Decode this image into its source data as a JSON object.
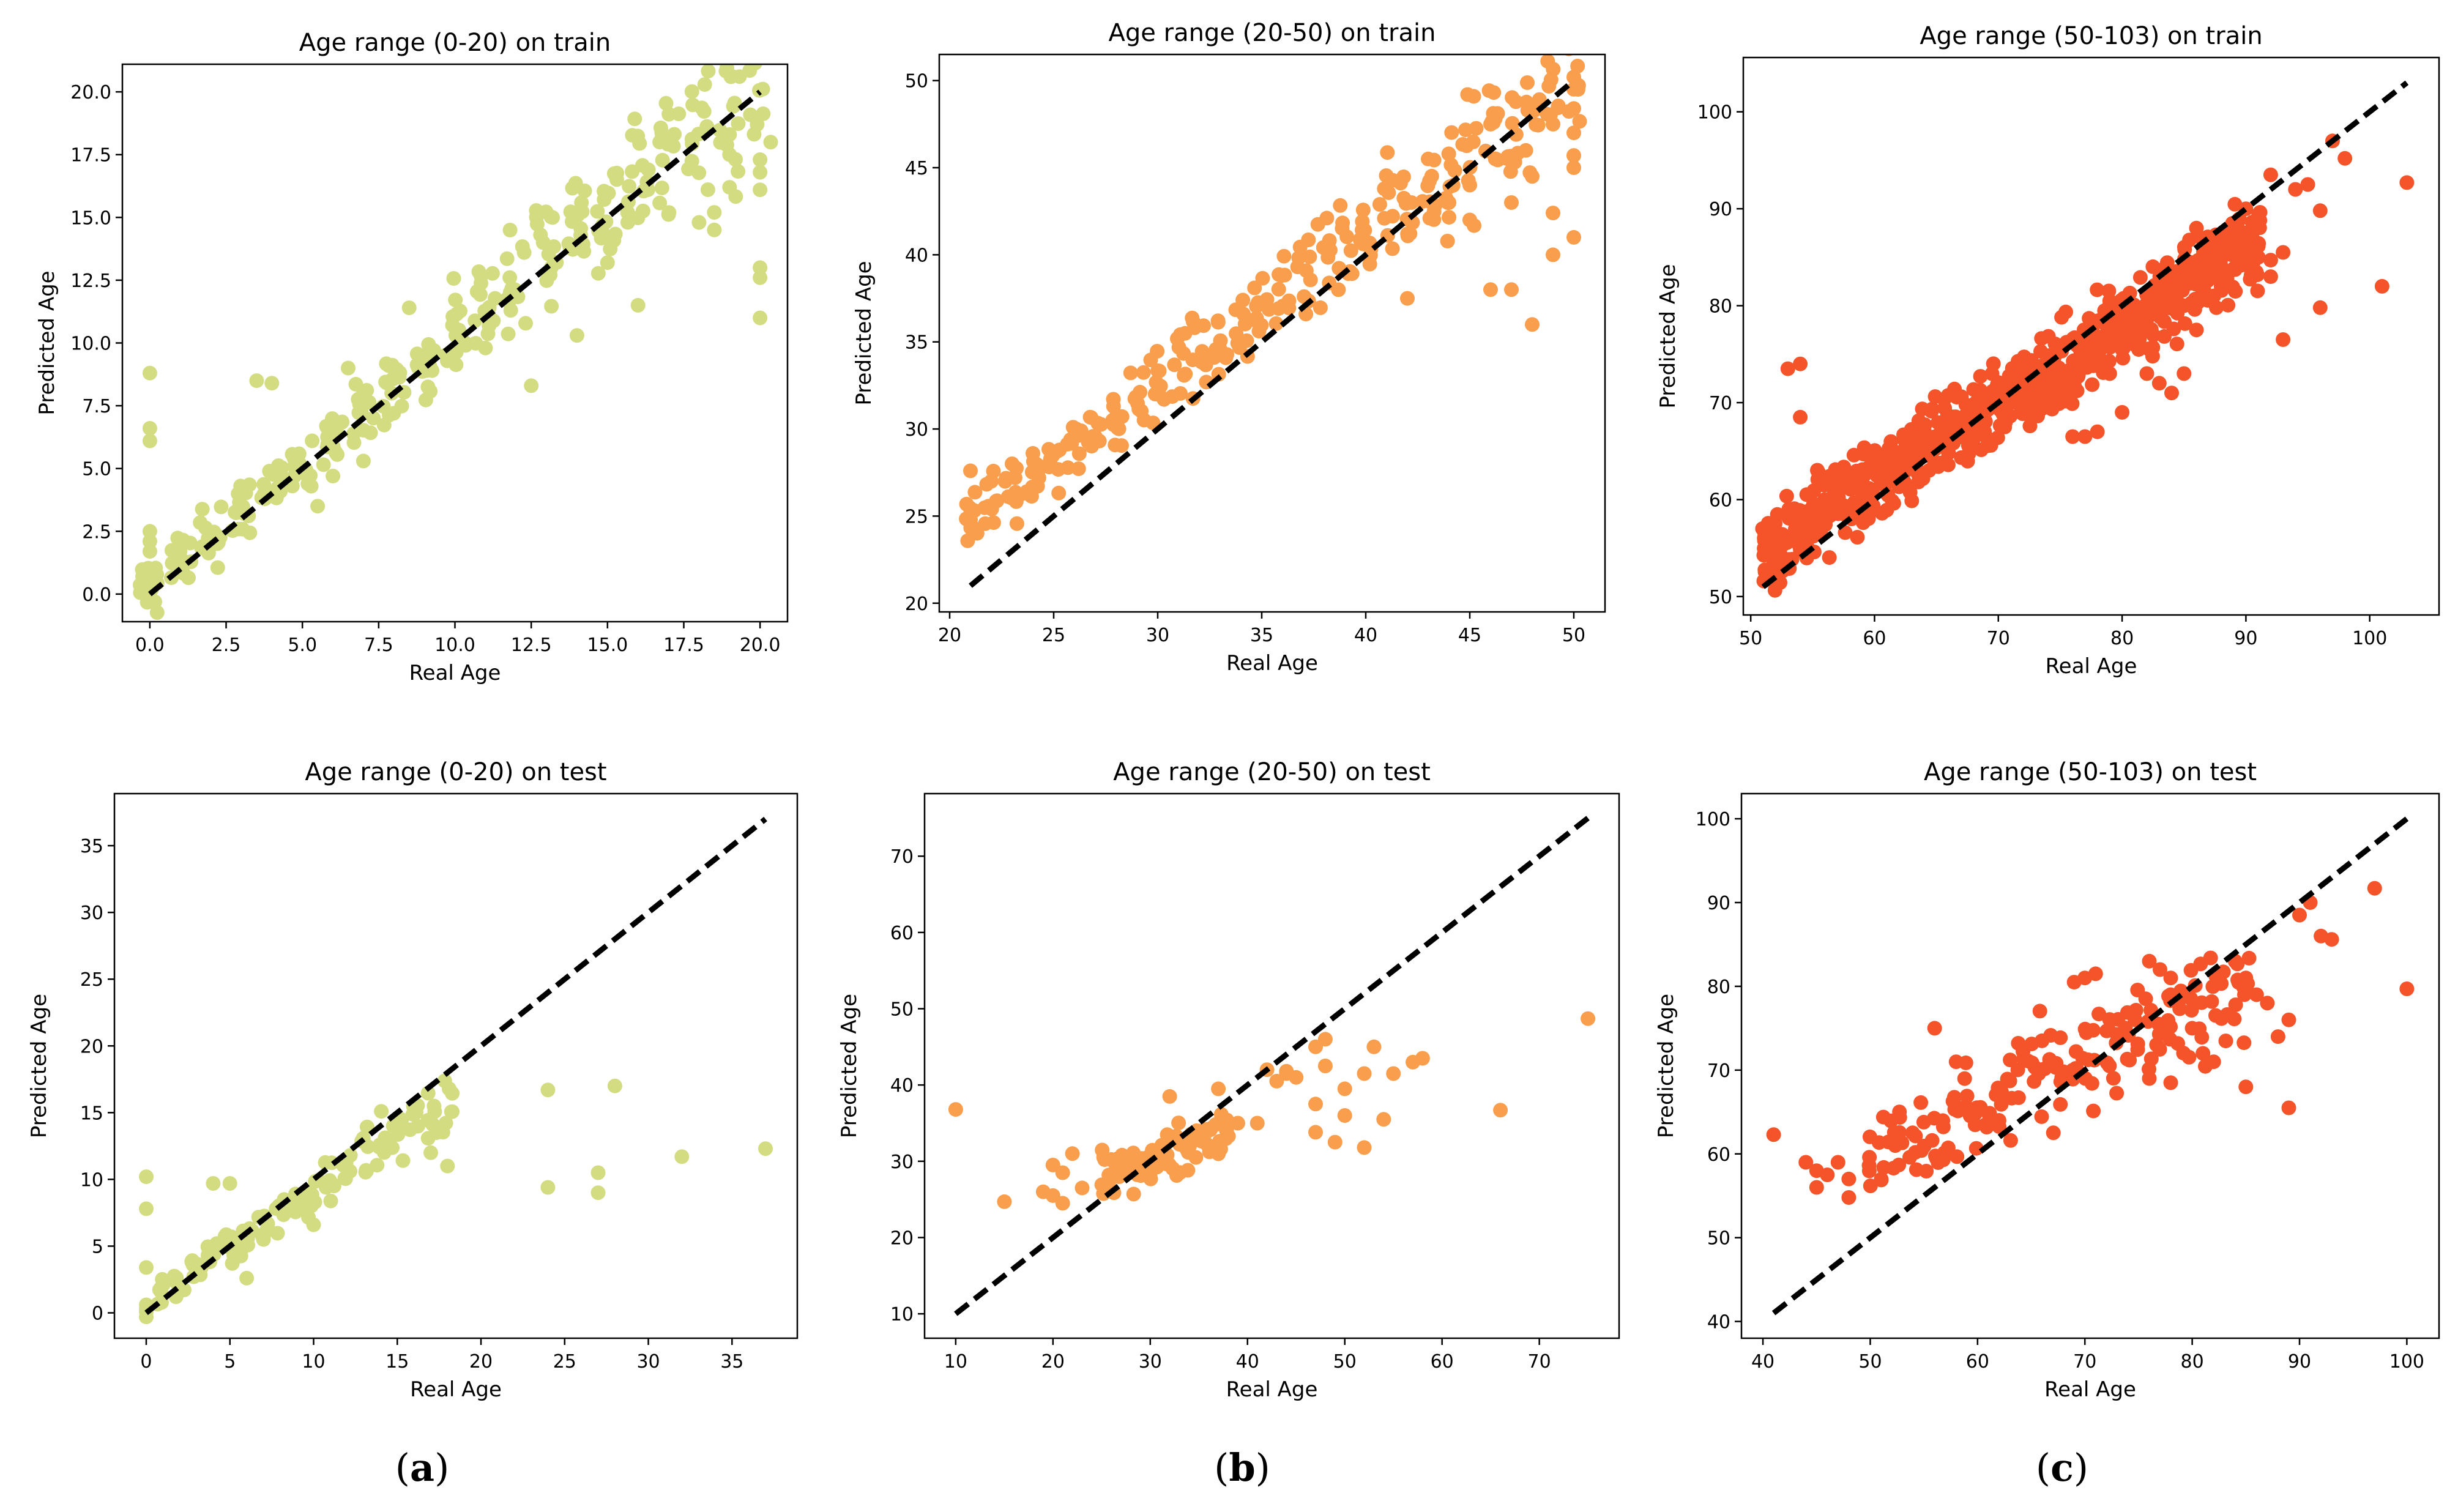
{
  "colors": {
    "train_test_a": "#d4dc82",
    "train_test_b": "#f99e4d",
    "train_test_c": "#f5542a",
    "ideal_line": "#000000"
  },
  "captions": [
    {
      "open": "(",
      "letter": "a",
      "close": ")"
    },
    {
      "open": "(",
      "letter": "b",
      "close": ")"
    },
    {
      "open": "(",
      "letter": "c",
      "close": ")"
    }
  ],
  "chart_data": [
    {
      "type": "scatter",
      "title": "Age range (0-20) on train",
      "xlabel": "Real Age",
      "ylabel": "Predicted Age",
      "xlim": [
        -0.9,
        20.9
      ],
      "ylim": [
        -1.1,
        21.1
      ],
      "xticks": [
        0.0,
        2.5,
        5.0,
        7.5,
        10.0,
        12.5,
        15.0,
        17.5,
        20.0
      ],
      "xtick_labels": [
        "0.0",
        "2.5",
        "5.0",
        "7.5",
        "10.0",
        "12.5",
        "15.0",
        "17.5",
        "20.0"
      ],
      "yticks": [
        0.0,
        2.5,
        5.0,
        7.5,
        10.0,
        12.5,
        15.0,
        17.5,
        20.0
      ],
      "ytick_labels": [
        "0.0",
        "2.5",
        "5.0",
        "7.5",
        "10.0",
        "12.5",
        "15.0",
        "17.5",
        "20.0"
      ],
      "color_key": "train_test_a",
      "ideal_line": [
        [
          0,
          0
        ],
        [
          20,
          20
        ]
      ],
      "gen": {
        "x_min": 0,
        "x_max": 20,
        "step": 1,
        "per_x": 16,
        "slope": 1.0,
        "intercept": 0.4,
        "spread_min": 0.8,
        "spread_rel": 0.12,
        "seed": 11
      },
      "points": [
        [
          0,
          8.8
        ],
        [
          0,
          6.6
        ],
        [
          0,
          6.1
        ],
        [
          0,
          2.5
        ],
        [
          0,
          2.1
        ],
        [
          0,
          1.7
        ],
        [
          0,
          -0.2
        ],
        [
          18,
          14.8
        ],
        [
          18.5,
          14.5
        ],
        [
          19,
          18.3
        ],
        [
          19,
          16.2
        ],
        [
          20,
          17.3
        ],
        [
          20,
          16.8
        ],
        [
          20,
          16.1
        ],
        [
          20,
          13.0
        ],
        [
          20,
          12.6
        ],
        [
          20,
          11.0
        ],
        [
          19,
          17.5
        ],
        [
          18.5,
          15.2
        ],
        [
          15,
          13.2
        ],
        [
          16,
          11.5
        ],
        [
          14,
          10.3
        ],
        [
          12.5,
          8.3
        ],
        [
          11,
          9.8
        ],
        [
          8.5,
          11.4
        ],
        [
          6.5,
          9.0
        ],
        [
          7,
          5.3
        ],
        [
          4,
          8.4
        ],
        [
          3.5,
          8.5
        ],
        [
          5.5,
          3.5
        ],
        [
          6,
          4.7
        ]
      ]
    },
    {
      "type": "scatter",
      "title": "Age range (20-50) on train",
      "xlabel": "Real Age",
      "ylabel": "Predicted Age",
      "xlim": [
        19.5,
        51.5
      ],
      "ylim": [
        19.5,
        51.5
      ],
      "xticks": [
        20,
        25,
        30,
        35,
        40,
        45,
        50
      ],
      "xtick_labels": [
        "20",
        "25",
        "30",
        "35",
        "40",
        "45",
        "50"
      ],
      "yticks": [
        20,
        25,
        30,
        35,
        40,
        45,
        50
      ],
      "ytick_labels": [
        "20",
        "25",
        "30",
        "35",
        "40",
        "45",
        "50"
      ],
      "color_key": "train_test_b",
      "ideal_line": [
        [
          21,
          21
        ],
        [
          50,
          50
        ]
      ],
      "gen": {
        "x_min": 21,
        "x_max": 50,
        "step": 1,
        "per_x": 10,
        "slope": 0.87,
        "intercept": 6.5,
        "spread_min": 1.2,
        "spread_rel": 0.05,
        "seed": 23
      },
      "points": [
        [
          21,
          27.6
        ],
        [
          21,
          24.8
        ],
        [
          22,
          27.0
        ],
        [
          23,
          28.0
        ],
        [
          24,
          28.6
        ],
        [
          47,
          43.0
        ],
        [
          47,
          38.0
        ],
        [
          48,
          36.0
        ],
        [
          48,
          44.5
        ],
        [
          49,
          40.0
        ],
        [
          50,
          50.2
        ],
        [
          50,
          49.5
        ],
        [
          50,
          48.4
        ],
        [
          50,
          47.0
        ],
        [
          50,
          45.7
        ],
        [
          50,
          45.0
        ],
        [
          50,
          41.0
        ],
        [
          49,
          42.4
        ],
        [
          49,
          47.5
        ],
        [
          46,
          38.0
        ],
        [
          44,
          43.0
        ],
        [
          43,
          45.5
        ],
        [
          42,
          37.5
        ],
        [
          45,
          42.0
        ],
        [
          46,
          47.5
        ],
        [
          45,
          44.0
        ]
      ]
    },
    {
      "type": "scatter",
      "title": "Age range (50-103) on train",
      "xlabel": "Real Age",
      "ylabel": "Predicted Age",
      "xlim": [
        49.4,
        105.6
      ],
      "ylim": [
        48.1,
        105.6
      ],
      "xticks": [
        50,
        60,
        70,
        80,
        90,
        100
      ],
      "xtick_labels": [
        "50",
        "60",
        "70",
        "80",
        "90",
        "100"
      ],
      "yticks": [
        50,
        60,
        70,
        80,
        90,
        100
      ],
      "ytick_labels": [
        "50",
        "60",
        "70",
        "80",
        "90",
        "100"
      ],
      "color_key": "train_test_c",
      "ideal_line": [
        [
          51,
          51
        ],
        [
          103,
          103
        ]
      ],
      "gen": {
        "x_min": 51,
        "x_max": 91,
        "step": 0.5,
        "per_x": 9,
        "slope": 0.8,
        "intercept": 14,
        "spread_min": 3,
        "spread_rel": 0.03,
        "seed": 37
      },
      "points": [
        [
          53,
          73.5
        ],
        [
          54,
          74
        ],
        [
          54,
          68.5
        ],
        [
          95,
          92.5
        ],
        [
          96,
          89.8
        ],
        [
          96,
          79.8
        ],
        [
          97,
          97
        ],
        [
          98,
          95.2
        ],
        [
          101,
          82
        ],
        [
          103,
          92.7
        ],
        [
          93,
          76.5
        ],
        [
          94,
          92
        ],
        [
          92,
          93.5
        ],
        [
          91,
          85
        ],
        [
          90,
          90
        ],
        [
          89,
          87
        ],
        [
          92,
          83
        ],
        [
          93,
          85.5
        ],
        [
          92,
          84.7
        ],
        [
          86,
          88
        ],
        [
          87,
          85
        ],
        [
          85,
          80
        ],
        [
          88,
          82
        ],
        [
          84,
          71
        ],
        [
          82,
          73
        ],
        [
          80,
          69
        ],
        [
          79,
          73
        ],
        [
          77,
          66.5
        ],
        [
          76,
          66.5
        ],
        [
          78,
          67
        ],
        [
          85,
          73
        ],
        [
          83,
          72
        ],
        [
          81,
          77
        ],
        [
          79,
          80.5
        ],
        [
          86,
          77.5
        ]
      ]
    },
    {
      "type": "scatter",
      "title": "Age range (0-20) on test",
      "xlabel": "Real Age",
      "ylabel": "Predicted Age",
      "xlim": [
        -1.9,
        38.9
      ],
      "ylim": [
        -1.9,
        38.9
      ],
      "xticks": [
        0,
        5,
        10,
        15,
        20,
        25,
        30,
        35
      ],
      "xtick_labels": [
        "0",
        "5",
        "10",
        "15",
        "20",
        "25",
        "30",
        "35"
      ],
      "yticks": [
        0,
        5,
        10,
        15,
        20,
        25,
        30,
        35
      ],
      "ytick_labels": [
        "0",
        "5",
        "10",
        "15",
        "20",
        "25",
        "30",
        "35"
      ],
      "color_key": "train_test_a",
      "ideal_line": [
        [
          0,
          0
        ],
        [
          37,
          37
        ]
      ],
      "gen": {
        "x_min": 1,
        "x_max": 18,
        "step": 1,
        "per_x": 7,
        "slope": 0.85,
        "intercept": 0.6,
        "spread_min": 1.0,
        "spread_rel": 0.12,
        "seed": 41
      },
      "points": [
        [
          0,
          10.2
        ],
        [
          0,
          7.8
        ],
        [
          0,
          3.4
        ],
        [
          0,
          0.6
        ],
        [
          0,
          0.3
        ],
        [
          0,
          -0.3
        ],
        [
          0,
          0.1
        ],
        [
          24,
          16.7
        ],
        [
          24,
          9.4
        ],
        [
          27,
          10.5
        ],
        [
          27,
          9.0
        ],
        [
          28,
          17.0
        ],
        [
          32,
          11.7
        ],
        [
          37,
          12.3
        ],
        [
          4,
          9.7
        ],
        [
          5,
          9.7
        ],
        [
          6,
          2.6
        ],
        [
          18,
          11.0
        ],
        [
          17,
          12.0
        ],
        [
          10,
          6.6
        ]
      ]
    },
    {
      "type": "scatter",
      "title": "Age range (20-50) on test",
      "xlabel": "Real Age",
      "ylabel": "Predicted Age",
      "xlim": [
        6.8,
        78.2
      ],
      "ylim": [
        6.8,
        78.2
      ],
      "xticks": [
        10,
        20,
        30,
        40,
        50,
        60,
        70
      ],
      "xtick_labels": [
        "10",
        "20",
        "30",
        "40",
        "50",
        "60",
        "70"
      ],
      "yticks": [
        10,
        20,
        30,
        40,
        50,
        60,
        70
      ],
      "ytick_labels": [
        "10",
        "20",
        "30",
        "40",
        "50",
        "60",
        "70"
      ],
      "color_key": "train_test_b",
      "ideal_line": [
        [
          10,
          10
        ],
        [
          75,
          75
        ]
      ],
      "gen": {
        "x_min": 25,
        "x_max": 38,
        "step": 1,
        "per_x": 6,
        "slope": 0.45,
        "intercept": 17,
        "spread_min": 2.2,
        "spread_rel": 0.02,
        "seed": 53
      },
      "points": [
        [
          10,
          36.8
        ],
        [
          15,
          24.7
        ],
        [
          19,
          26
        ],
        [
          20,
          25.5
        ],
        [
          20,
          29.5
        ],
        [
          21,
          24.5
        ],
        [
          21,
          28.5
        ],
        [
          22,
          31
        ],
        [
          23,
          26.5
        ],
        [
          32,
          38.5
        ],
        [
          37,
          39.5
        ],
        [
          39,
          35
        ],
        [
          41,
          35
        ],
        [
          42,
          42
        ],
        [
          43,
          40.5
        ],
        [
          44,
          41.5
        ],
        [
          47,
          45
        ],
        [
          47,
          37.5
        ],
        [
          47,
          33.8
        ],
        [
          48,
          46
        ],
        [
          48,
          42.5
        ],
        [
          49,
          32.5
        ],
        [
          50,
          36
        ],
        [
          50,
          39.5
        ],
        [
          52,
          31.8
        ],
        [
          52,
          41.5
        ],
        [
          53,
          45
        ],
        [
          54,
          35.5
        ],
        [
          55,
          41.5
        ],
        [
          57,
          43
        ],
        [
          58,
          43.5
        ],
        [
          66,
          36.7
        ],
        [
          75,
          48.7
        ],
        [
          45,
          41
        ],
        [
          44,
          41.8
        ]
      ]
    },
    {
      "type": "scatter",
      "title": "Age range (50-103) on test",
      "xlabel": "Real Age",
      "ylabel": "Predicted Age",
      "xlim": [
        38.0,
        103.0
      ],
      "ylim": [
        38.0,
        103.0
      ],
      "xticks": [
        40,
        50,
        60,
        70,
        80,
        90,
        100
      ],
      "xtick_labels": [
        "40",
        "50",
        "60",
        "70",
        "80",
        "90",
        "100"
      ],
      "yticks": [
        40,
        50,
        60,
        70,
        80,
        90,
        100
      ],
      "ytick_labels": [
        "40",
        "50",
        "60",
        "70",
        "80",
        "90",
        "100"
      ],
      "color_key": "train_test_c",
      "ideal_line": [
        [
          41,
          41
        ],
        [
          100,
          100
        ]
      ],
      "gen": {
        "x_min": 50,
        "x_max": 85,
        "step": 1,
        "per_x": 5,
        "slope": 0.6,
        "intercept": 29,
        "spread_min": 4.5,
        "spread_rel": 0.02,
        "seed": 67
      },
      "points": [
        [
          41,
          62.3
        ],
        [
          44,
          59
        ],
        [
          45,
          58
        ],
        [
          45,
          56
        ],
        [
          46,
          57.5
        ],
        [
          47,
          59
        ],
        [
          48,
          54.8
        ],
        [
          48,
          57
        ],
        [
          56,
          75
        ],
        [
          58,
          71
        ],
        [
          62,
          64
        ],
        [
          66,
          73.5
        ],
        [
          69,
          80.5
        ],
        [
          70,
          81
        ],
        [
          71,
          81.5
        ],
        [
          76,
          83
        ],
        [
          77,
          82
        ],
        [
          78,
          81
        ],
        [
          78,
          79
        ],
        [
          80,
          75
        ],
        [
          81,
          72
        ],
        [
          82,
          71
        ],
        [
          84,
          83
        ],
        [
          85,
          81
        ],
        [
          86,
          79
        ],
        [
          87,
          78
        ],
        [
          88,
          74
        ],
        [
          89,
          76
        ],
        [
          89,
          65.5
        ],
        [
          90,
          88.5
        ],
        [
          91,
          90
        ],
        [
          92,
          86
        ],
        [
          93,
          85.6
        ],
        [
          97,
          91.7
        ],
        [
          100,
          79.7
        ],
        [
          76,
          69
        ],
        [
          78,
          68.5
        ],
        [
          85,
          68
        ]
      ]
    }
  ]
}
